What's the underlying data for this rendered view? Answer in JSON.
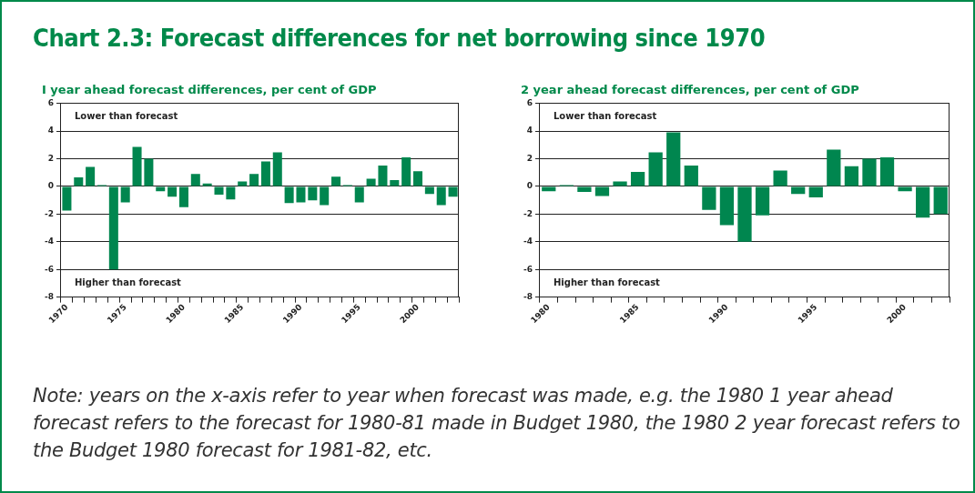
{
  "chart_data": [
    {
      "type": "bar",
      "title": "Chart 2.3: Forecast differences for net borrowing since 1970",
      "subtitle": "I year ahead forecast differences, per cent of GDP",
      "categories": [
        "1970",
        null,
        null,
        null,
        null,
        "1975",
        null,
        null,
        null,
        null,
        "1980",
        null,
        null,
        null,
        null,
        "1985",
        null,
        null,
        null,
        null,
        "1990",
        null,
        null,
        null,
        null,
        "1995",
        null,
        null,
        null,
        null,
        "2000",
        null,
        null,
        null
      ],
      "values": [
        -1.75,
        0.65,
        1.4,
        0.1,
        -6.0,
        -1.15,
        2.85,
        2.0,
        -0.35,
        -0.75,
        -1.5,
        0.9,
        0.2,
        -0.6,
        -0.95,
        0.35,
        0.9,
        1.8,
        2.45,
        -1.2,
        -1.15,
        -1.0,
        -1.35,
        0.7,
        0.1,
        -1.15,
        0.55,
        1.5,
        0.45,
        2.1,
        1.1,
        -0.55,
        -1.35,
        -0.75
      ],
      "color": "#00864f",
      "ylim": [
        -8,
        6
      ],
      "yticks": [
        -8,
        -6,
        -4,
        -2,
        0,
        2,
        4,
        6
      ],
      "grid": "y",
      "annotations": [
        "Lower than forecast",
        "Higher than forecast"
      ]
    },
    {
      "type": "bar",
      "subtitle": "2 year ahead forecast differences, per cent of GDP",
      "categories": [
        "1980",
        null,
        null,
        null,
        null,
        "1985",
        null,
        null,
        null,
        null,
        "1990",
        null,
        null,
        null,
        null,
        "1995",
        null,
        null,
        null,
        null,
        "2000",
        null,
        null
      ],
      "values": [
        -0.35,
        0.1,
        -0.4,
        -0.7,
        0.35,
        1.05,
        2.45,
        3.9,
        1.5,
        -1.7,
        -2.8,
        -4.0,
        -2.1,
        1.15,
        -0.55,
        -0.8,
        2.65,
        1.45,
        2.0,
        2.1,
        -0.35,
        -2.25,
        -2.0
      ],
      "color": "#00864f",
      "ylim": [
        -8,
        6
      ],
      "yticks": [
        -8,
        -6,
        -4,
        -2,
        0,
        2,
        4,
        6
      ],
      "grid": "y",
      "annotations": [
        "Lower than forecast",
        "Higher than forecast",
        "Note: years on the x-axis refer to year when forecast was made, e.g. the 1980 1 year ahead forecast refers to the forecast for 1980-81 made in Budget 1980, the 1980 2 year forecast refers to the Budget 1980 forecast for 1981-82, etc."
      ]
    }
  ]
}
